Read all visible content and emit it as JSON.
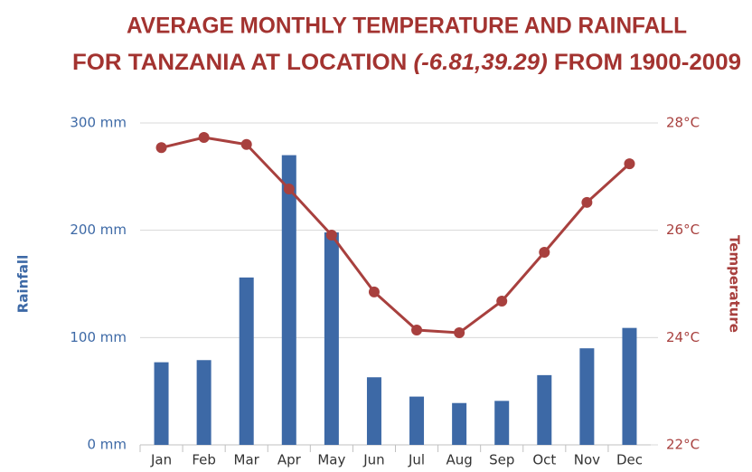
{
  "chart_data": {
    "type": "bar_line",
    "title_lines": [
      "AVERAGE MONTHLY TEMPERATURE AND RAINFALL",
      "FOR TANZANIA AT LOCATION",
      "(-6.81,39.29)",
      "FROM 1900-2009"
    ],
    "ylabel": "Rainfall",
    "y2label": "Temperature",
    "categories": [
      "Jan",
      "Feb",
      "Mar",
      "Apr",
      "May",
      "Jun",
      "Jul",
      "Aug",
      "Sep",
      "Oct",
      "Nov",
      "Dec"
    ],
    "series": [
      {
        "name": "Rainfall",
        "type": "bar",
        "color": "#3d69a6",
        "values": [
          77,
          79,
          156,
          270,
          198,
          63,
          45,
          39,
          41,
          65,
          90,
          109
        ]
      },
      {
        "name": "Temperature",
        "type": "line",
        "axis": "y2",
        "color": "#a8403e",
        "values": [
          27.54,
          27.73,
          27.6,
          26.77,
          25.91,
          24.85,
          24.14,
          24.09,
          24.68,
          25.59,
          26.52,
          27.24
        ]
      }
    ],
    "ylim": [
      0,
      300
    ],
    "yticks": [
      {
        "value": 0,
        "label": "0 mm"
      },
      {
        "value": 100,
        "label": "100 mm"
      },
      {
        "value": 200,
        "label": "200 mm"
      },
      {
        "value": 300,
        "label": "300 mm"
      }
    ],
    "y2lim": [
      22,
      28
    ],
    "y2ticks": [
      {
        "value": 22,
        "label": "22°C"
      },
      {
        "value": 24,
        "label": "24°C"
      },
      {
        "value": 26,
        "label": "26°C"
      },
      {
        "value": 28,
        "label": "28°C"
      }
    ],
    "grid": true
  }
}
